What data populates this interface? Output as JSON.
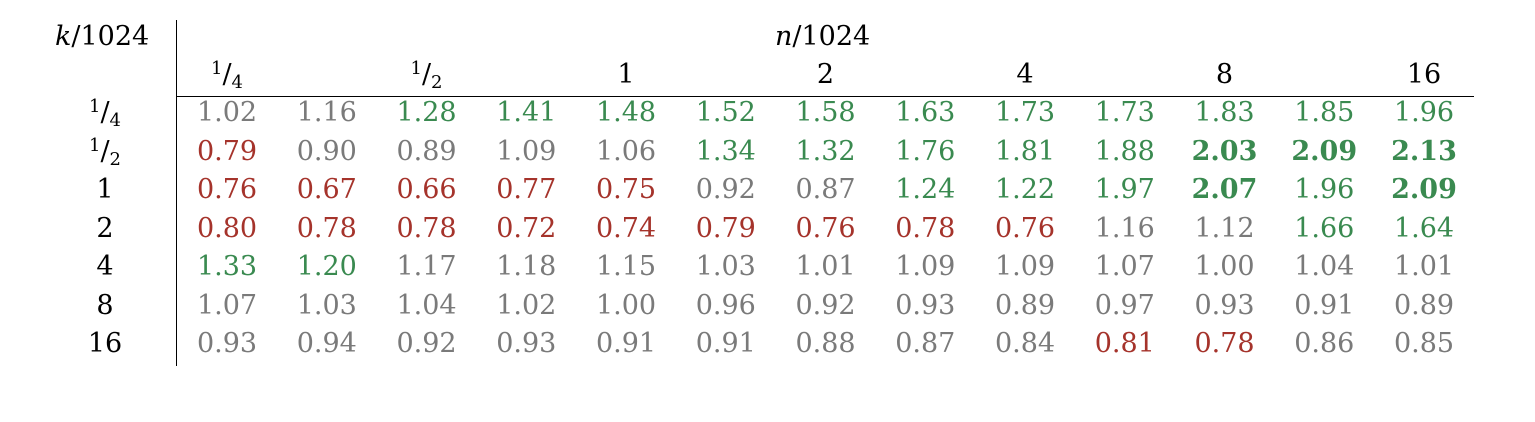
{
  "corner_label": "k/1024",
  "columns_title": "n/1024",
  "column_headers": [
    {
      "label": "1/4",
      "col": 0
    },
    {
      "label": "1/2",
      "col": 2
    },
    {
      "label": "1",
      "col": 4
    },
    {
      "label": "2",
      "col": 6
    },
    {
      "label": "4",
      "col": 8
    },
    {
      "label": "8",
      "col": 10
    },
    {
      "label": "16",
      "col": 12
    }
  ],
  "colors": {
    "neutral": "#7a7a7a",
    "good": "#3a8a50",
    "bad": "#a5332b"
  },
  "rows": [
    {
      "label": "1/4",
      "cells": [
        {
          "v": "1.02",
          "s": "g"
        },
        {
          "v": "1.16",
          "s": "g"
        },
        {
          "v": "1.28",
          "s": "gr"
        },
        {
          "v": "1.41",
          "s": "gr"
        },
        {
          "v": "1.48",
          "s": "gr"
        },
        {
          "v": "1.52",
          "s": "gr"
        },
        {
          "v": "1.58",
          "s": "gr"
        },
        {
          "v": "1.63",
          "s": "gr"
        },
        {
          "v": "1.73",
          "s": "gr"
        },
        {
          "v": "1.73",
          "s": "gr"
        },
        {
          "v": "1.83",
          "s": "gr"
        },
        {
          "v": "1.85",
          "s": "gr"
        },
        {
          "v": "1.96",
          "s": "gr"
        }
      ]
    },
    {
      "label": "1/2",
      "cells": [
        {
          "v": "0.79",
          "s": "r"
        },
        {
          "v": "0.90",
          "s": "g"
        },
        {
          "v": "0.89",
          "s": "g"
        },
        {
          "v": "1.09",
          "s": "g"
        },
        {
          "v": "1.06",
          "s": "g"
        },
        {
          "v": "1.34",
          "s": "gr"
        },
        {
          "v": "1.32",
          "s": "gr"
        },
        {
          "v": "1.76",
          "s": "gr"
        },
        {
          "v": "1.81",
          "s": "gr"
        },
        {
          "v": "1.88",
          "s": "gr"
        },
        {
          "v": "2.03",
          "s": "gr",
          "bold": true
        },
        {
          "v": "2.09",
          "s": "gr",
          "bold": true
        },
        {
          "v": "2.13",
          "s": "gr",
          "bold": true
        }
      ]
    },
    {
      "label": "1",
      "cells": [
        {
          "v": "0.76",
          "s": "r"
        },
        {
          "v": "0.67",
          "s": "r"
        },
        {
          "v": "0.66",
          "s": "r"
        },
        {
          "v": "0.77",
          "s": "r"
        },
        {
          "v": "0.75",
          "s": "r"
        },
        {
          "v": "0.92",
          "s": "g"
        },
        {
          "v": "0.87",
          "s": "g"
        },
        {
          "v": "1.24",
          "s": "gr"
        },
        {
          "v": "1.22",
          "s": "gr"
        },
        {
          "v": "1.97",
          "s": "gr"
        },
        {
          "v": "2.07",
          "s": "gr",
          "bold": true
        },
        {
          "v": "1.96",
          "s": "gr"
        },
        {
          "v": "2.09",
          "s": "gr",
          "bold": true
        }
      ]
    },
    {
      "label": "2",
      "cells": [
        {
          "v": "0.80",
          "s": "r"
        },
        {
          "v": "0.78",
          "s": "r"
        },
        {
          "v": "0.78",
          "s": "r"
        },
        {
          "v": "0.72",
          "s": "r"
        },
        {
          "v": "0.74",
          "s": "r"
        },
        {
          "v": "0.79",
          "s": "r"
        },
        {
          "v": "0.76",
          "s": "r"
        },
        {
          "v": "0.78",
          "s": "r"
        },
        {
          "v": "0.76",
          "s": "r"
        },
        {
          "v": "1.16",
          "s": "g"
        },
        {
          "v": "1.12",
          "s": "g"
        },
        {
          "v": "1.66",
          "s": "gr"
        },
        {
          "v": "1.64",
          "s": "gr"
        }
      ]
    },
    {
      "label": "4",
      "cells": [
        {
          "v": "1.33",
          "s": "gr"
        },
        {
          "v": "1.20",
          "s": "gr"
        },
        {
          "v": "1.17",
          "s": "g"
        },
        {
          "v": "1.18",
          "s": "g"
        },
        {
          "v": "1.15",
          "s": "g"
        },
        {
          "v": "1.03",
          "s": "g"
        },
        {
          "v": "1.01",
          "s": "g"
        },
        {
          "v": "1.09",
          "s": "g"
        },
        {
          "v": "1.09",
          "s": "g"
        },
        {
          "v": "1.07",
          "s": "g"
        },
        {
          "v": "1.00",
          "s": "g"
        },
        {
          "v": "1.04",
          "s": "g"
        },
        {
          "v": "1.01",
          "s": "g"
        }
      ]
    },
    {
      "label": "8",
      "cells": [
        {
          "v": "1.07",
          "s": "g"
        },
        {
          "v": "1.03",
          "s": "g"
        },
        {
          "v": "1.04",
          "s": "g"
        },
        {
          "v": "1.02",
          "s": "g"
        },
        {
          "v": "1.00",
          "s": "g"
        },
        {
          "v": "0.96",
          "s": "g"
        },
        {
          "v": "0.92",
          "s": "g"
        },
        {
          "v": "0.93",
          "s": "g"
        },
        {
          "v": "0.89",
          "s": "g"
        },
        {
          "v": "0.97",
          "s": "g"
        },
        {
          "v": "0.93",
          "s": "g"
        },
        {
          "v": "0.91",
          "s": "g"
        },
        {
          "v": "0.89",
          "s": "g"
        }
      ]
    },
    {
      "label": "16",
      "cells": [
        {
          "v": "0.93",
          "s": "g"
        },
        {
          "v": "0.94",
          "s": "g"
        },
        {
          "v": "0.92",
          "s": "g"
        },
        {
          "v": "0.93",
          "s": "g"
        },
        {
          "v": "0.91",
          "s": "g"
        },
        {
          "v": "0.91",
          "s": "g"
        },
        {
          "v": "0.88",
          "s": "g"
        },
        {
          "v": "0.87",
          "s": "g"
        },
        {
          "v": "0.84",
          "s": "g"
        },
        {
          "v": "0.81",
          "s": "r"
        },
        {
          "v": "0.78",
          "s": "r"
        },
        {
          "v": "0.86",
          "s": "g"
        },
        {
          "v": "0.85",
          "s": "g"
        }
      ]
    }
  ]
}
